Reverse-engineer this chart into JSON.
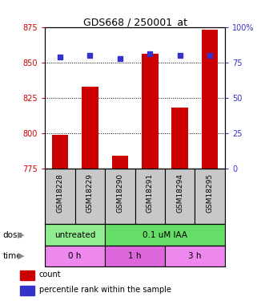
{
  "title": "GDS668 / 250001_at",
  "samples": [
    "GSM18228",
    "GSM18229",
    "GSM18290",
    "GSM18291",
    "GSM18294",
    "GSM18295"
  ],
  "bar_values": [
    799,
    833,
    784,
    856,
    818,
    873
  ],
  "percentile_values": [
    79,
    80,
    78,
    81,
    80,
    80
  ],
  "bar_bottom": 775,
  "ylim_left": [
    775,
    875
  ],
  "ylim_right": [
    0,
    100
  ],
  "yticks_left": [
    775,
    800,
    825,
    850,
    875
  ],
  "yticks_right": [
    0,
    25,
    50,
    75,
    100
  ],
  "bar_color": "#cc0000",
  "dot_color": "#3333cc",
  "dot_size": 18,
  "dose_groups": [
    {
      "label": "untreated",
      "start": 0,
      "end": 2,
      "color": "#90ee90"
    },
    {
      "label": "0.1 uM IAA",
      "start": 2,
      "end": 6,
      "color": "#66dd66"
    }
  ],
  "time_groups": [
    {
      "label": "0 h",
      "start": 0,
      "end": 2,
      "color": "#ee88ee"
    },
    {
      "label": "1 h",
      "start": 2,
      "end": 4,
      "color": "#dd66dd"
    },
    {
      "label": "3 h",
      "start": 4,
      "end": 6,
      "color": "#ee88ee"
    }
  ],
  "dose_label": "dose",
  "time_label": "time",
  "legend_items": [
    {
      "label": "count",
      "color": "#cc0000"
    },
    {
      "label": "percentile rank within the sample",
      "color": "#3333cc"
    }
  ],
  "grid_color": "black",
  "tick_color_left": "#cc0000",
  "tick_color_right": "#3333cc",
  "sample_area_color": "#c8c8c8",
  "spine_color": "black"
}
